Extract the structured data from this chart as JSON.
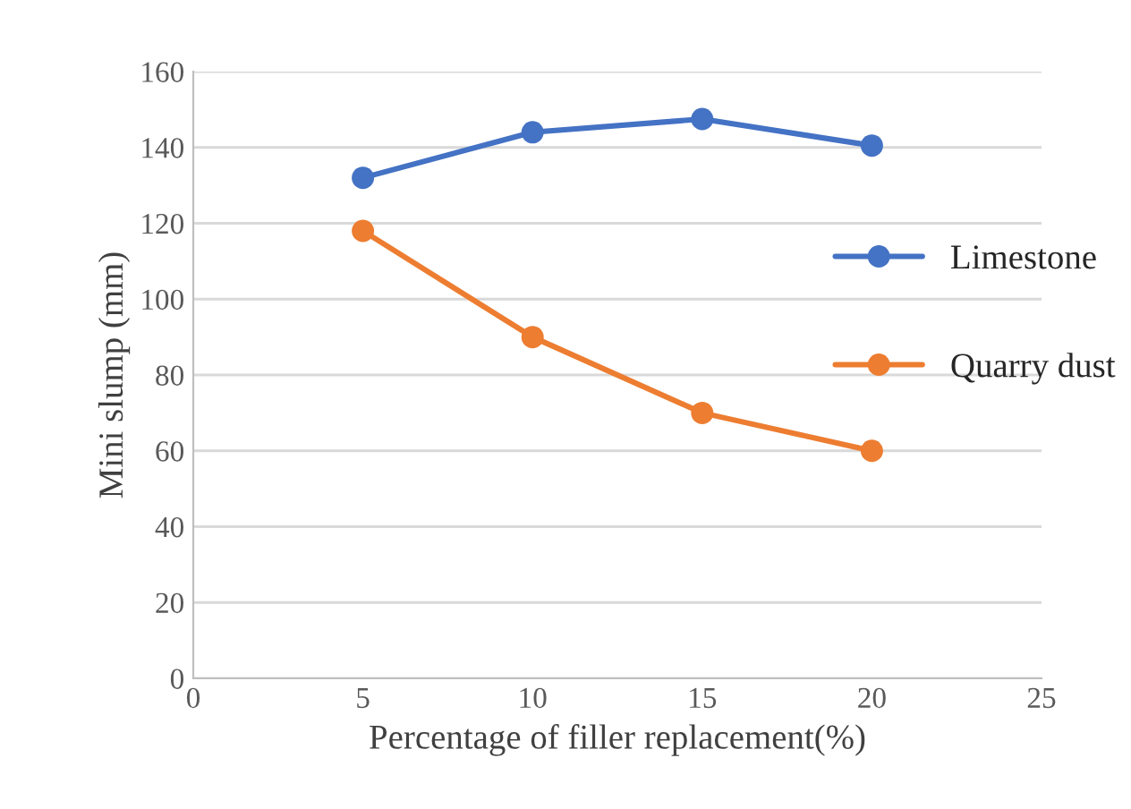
{
  "chart_data": {
    "type": "line",
    "xlabel": "Percentage of filler replacement(%)",
    "ylabel": "Mini slump (mm)",
    "x": [
      5,
      10,
      15,
      20
    ],
    "series": [
      {
        "name": "Limestone",
        "color": "#4472c4",
        "values": [
          132,
          144,
          147.5,
          140.5
        ]
      },
      {
        "name": "Quarry dust",
        "color": "#ed7d31",
        "values": [
          118,
          90,
          70,
          60
        ]
      }
    ],
    "xlim": [
      0,
      25
    ],
    "xticks": [
      0,
      5,
      10,
      15,
      20,
      25
    ],
    "ylim": [
      0,
      160
    ],
    "yticks": [
      0,
      20,
      40,
      60,
      80,
      100,
      120,
      140,
      160
    ],
    "grid": "y",
    "legend": "right",
    "marker": "circle",
    "line_style": "solid"
  }
}
